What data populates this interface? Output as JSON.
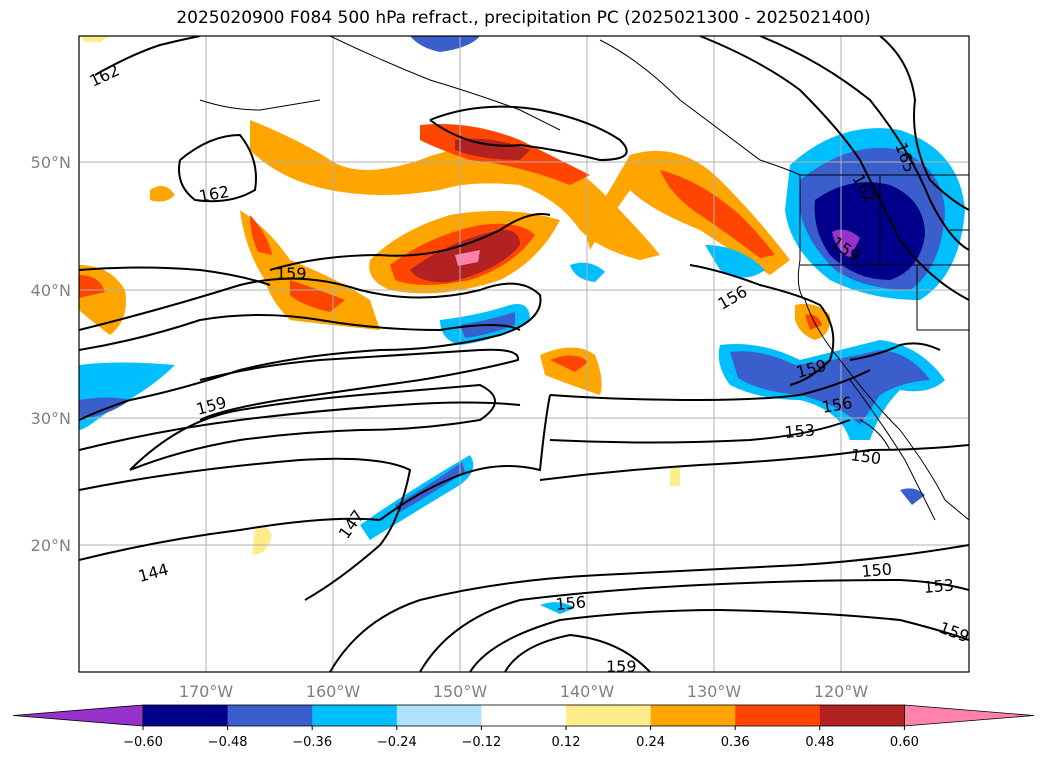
{
  "title": "2025020900 F084 500 hPa refract., precipitation PC (2025021300 - 2025021400)",
  "lat_labels": [
    "50°N",
    "40°N",
    "30°N",
    "20°N"
  ],
  "lon_labels": [
    "170°W",
    "160°W",
    "150°W",
    "140°W",
    "130°W",
    "120°W"
  ],
  "contour_labels": [
    "162",
    "162",
    "159",
    "159",
    "156",
    "165",
    "162",
    "159",
    "159",
    "156",
    "153",
    "150",
    "147",
    "144",
    "156",
    "150",
    "153",
    "159",
    "159"
  ],
  "colorbar": {
    "ticks": [
      "−0.60",
      "−0.48",
      "−0.36",
      "−0.24",
      "−0.12",
      "0.12",
      "0.24",
      "0.36",
      "0.48",
      "0.60"
    ],
    "colors": [
      "#9932cc",
      "#00008b",
      "#3a5fcd",
      "#00bfff",
      "#b0e2ff",
      "#ffffff",
      "#ffec8b",
      "#ffa500",
      "#ff4500",
      "#b22222",
      "#ff82ab"
    ]
  },
  "colors": {
    "land_outline": "#000000",
    "grid": "#b0b0b0",
    "contour": "#000000"
  }
}
